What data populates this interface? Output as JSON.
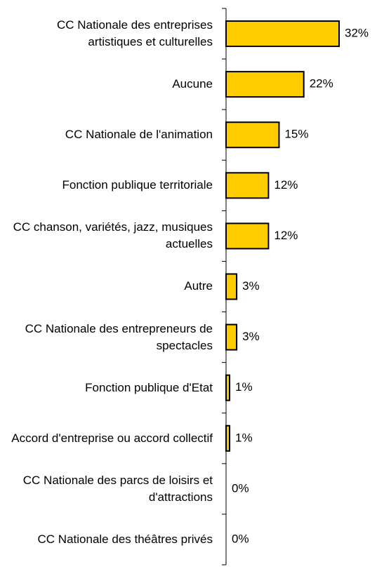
{
  "chart_data": {
    "type": "bar",
    "orientation": "horizontal",
    "categories": [
      "CC Nationale des entreprises artistiques et culturelles",
      "Aucune",
      "CC Nationale de l'animation",
      "Fonction publique territoriale",
      "CC chanson, variétés, jazz, musiques actuelles",
      "Autre",
      "CC Nationale des entrepreneurs de spectacles",
      "Fonction publique d'Etat",
      "Accord d'entreprise ou accord collectif",
      "CC Nationale des parcs de loisirs et d'attractions",
      "CC Nationale des théâtres privés"
    ],
    "values": [
      32,
      22,
      15,
      12,
      12,
      3,
      3,
      1,
      1,
      0,
      0
    ],
    "value_labels": [
      "32%",
      "22%",
      "15%",
      "12%",
      "12%",
      "3%",
      "3%",
      "1%",
      "1%",
      "0%",
      "0%"
    ],
    "color": "#ffcc00"
  }
}
